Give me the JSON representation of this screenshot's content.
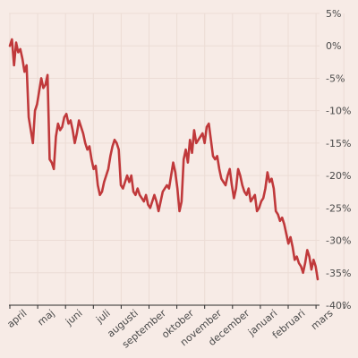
{
  "chart_data": {
    "type": "line",
    "title": "",
    "xlabel": "",
    "ylabel": "",
    "ylim": [
      -40,
      5
    ],
    "yticks": [
      5,
      0,
      -5,
      -10,
      -15,
      -20,
      -25,
      -30,
      -35,
      -40
    ],
    "ytick_labels": [
      "5%",
      "0%",
      "-5%",
      "-10%",
      "-15%",
      "-20%",
      "-25%",
      "-30%",
      "-35%",
      "-40%"
    ],
    "months": [
      "april",
      "maj",
      "juni",
      "juli",
      "augusti",
      "september",
      "oktober",
      "november",
      "december",
      "januari",
      "februari",
      "mars"
    ],
    "grid": true,
    "line_color": "#c0393b",
    "series": [
      {
        "values": [
          0,
          1,
          -3,
          0.5,
          -1,
          -0.5,
          -2,
          -4,
          -3,
          -11,
          -13,
          -15,
          -10,
          -9,
          -7,
          -5,
          -6.5,
          -6,
          -4.5,
          -17.5,
          -18,
          -19,
          -14,
          -12,
          -13,
          -12.5,
          -11,
          -10.5,
          -12,
          -11.5,
          -13,
          -15,
          -13.5,
          -11.5,
          -12.5,
          -13.5,
          -15,
          -16,
          -15.5,
          -17.5,
          -19,
          -18.5,
          -21.5,
          -23,
          -22.5,
          -21,
          -20,
          -19,
          -17,
          -15.5,
          -14.5,
          -15,
          -16,
          -21.5,
          -22,
          -21,
          -20,
          -21,
          -20,
          -22.5,
          -23,
          -22,
          -23,
          -23.5,
          -24,
          -23,
          -24.5,
          -25,
          -24,
          -23,
          -24,
          -25.5,
          -24,
          -22.5,
          -22,
          -21.5,
          -22,
          -20,
          -18,
          -19.5,
          -22,
          -25.5,
          -24,
          -17.5,
          -16,
          -18,
          -14.5,
          -16.5,
          -13,
          -15,
          -14.5,
          -14,
          -13.5,
          -15,
          -12.5,
          -12,
          -14.5,
          -17,
          -17.5,
          -17,
          -19,
          -20.5,
          -21,
          -21.5,
          -20,
          -19,
          -21.5,
          -23.5,
          -22,
          -19,
          -20,
          -21.5,
          -22.5,
          -23,
          -22,
          -24,
          -23.5,
          -23,
          -25.5,
          -25,
          -24,
          -23.5,
          -22,
          -19.5,
          -21,
          -20.5,
          -22,
          -25.5,
          -26,
          -27,
          -26.5,
          -27.5,
          -29,
          -30.5,
          -29.5,
          -31,
          -33,
          -32.5,
          -33.5,
          -34,
          -35,
          -33.5,
          -31.5,
          -32.5,
          -34.5,
          -33,
          -34,
          -36
        ]
      }
    ]
  }
}
